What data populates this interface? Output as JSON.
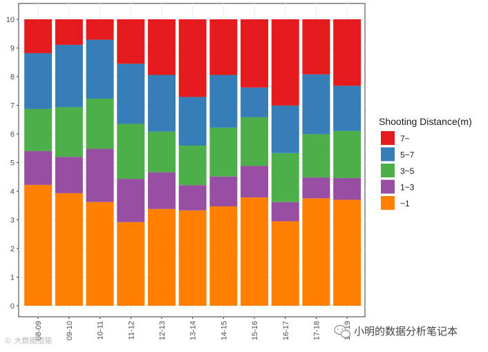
{
  "chart_data": {
    "type": "bar",
    "stacked": true,
    "title": "",
    "xlabel": "",
    "ylabel": "",
    "ylim": [
      0,
      10
    ],
    "yticks": [
      0,
      1,
      2,
      3,
      4,
      5,
      6,
      7,
      8,
      9,
      10
    ],
    "categories": [
      "08-09",
      "09-10",
      "10-11",
      "11-12",
      "12-13",
      "13-14",
      "14-15",
      "15-16",
      "16-17",
      "17-18",
      "18-19"
    ],
    "legend": {
      "title": "Shooting Distance(m)",
      "position": "right"
    },
    "series": [
      {
        "name": "~1",
        "color": "#FF7F00",
        "values": [
          4.22,
          3.93,
          3.62,
          2.92,
          3.38,
          3.33,
          3.47,
          3.78,
          2.95,
          3.75,
          3.7
        ]
      },
      {
        "name": "1~3",
        "color": "#984EA3",
        "values": [
          1.18,
          1.27,
          1.86,
          1.51,
          1.28,
          0.88,
          1.04,
          1.1,
          0.67,
          0.73,
          0.76
        ]
      },
      {
        "name": "3~5",
        "color": "#4DAF4A",
        "values": [
          1.47,
          1.73,
          1.75,
          1.92,
          1.42,
          1.38,
          1.71,
          1.7,
          1.71,
          1.51,
          1.64
        ]
      },
      {
        "name": "5~7",
        "color": "#377EB8",
        "values": [
          1.95,
          2.18,
          2.06,
          2.1,
          1.98,
          1.7,
          1.84,
          1.04,
          1.66,
          2.09,
          1.58
        ]
      },
      {
        "name": "7~",
        "color": "#E41A1C",
        "values": [
          1.18,
          0.89,
          0.71,
          1.55,
          1.94,
          2.71,
          1.94,
          2.38,
          3.01,
          1.92,
          2.32
        ]
      }
    ]
  },
  "watermark": {
    "left": "© 大数据猎猿",
    "right": "小明的数据分析笔记本"
  }
}
